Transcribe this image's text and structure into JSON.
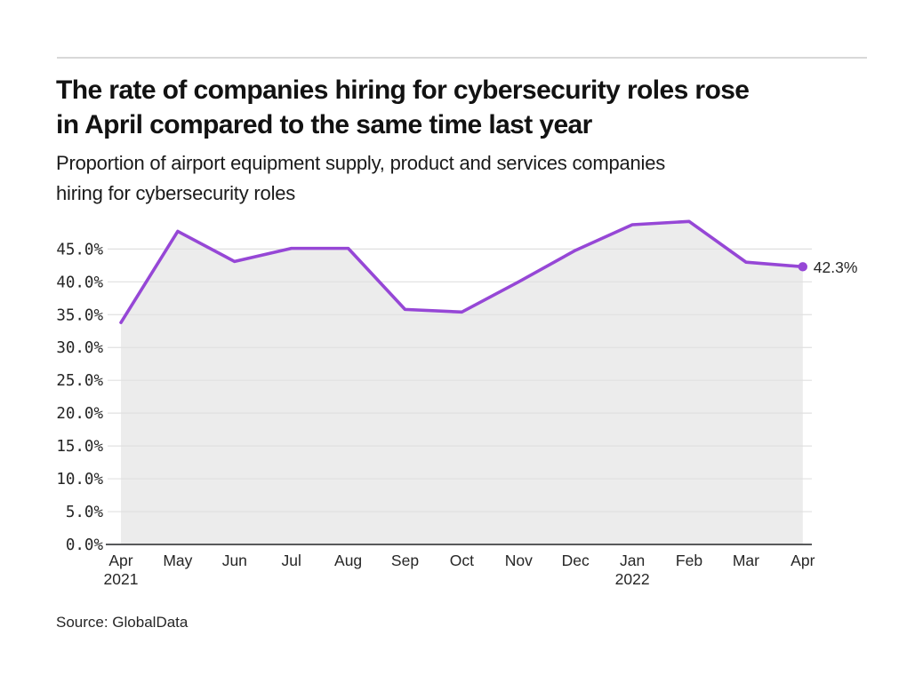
{
  "chart_data": {
    "type": "area",
    "title": "The rate of companies hiring for cybersecurity roles rose in April compared to the same time last year",
    "title_lines": [
      "The rate of companies hiring for cybersecurity roles rose",
      "in April compared to the same time last year"
    ],
    "subtitle": "Proportion of airport equipment supply, product and services companies hiring for cybersecurity roles",
    "subtitle_lines": [
      "Proportion of airport equipment supply, product and services companies",
      "hiring for cybersecurity roles"
    ],
    "categories": [
      "Apr",
      "May",
      "Jun",
      "Jul",
      "Aug",
      "Sep",
      "Oct",
      "Nov",
      "Dec",
      "Jan",
      "Feb",
      "Mar",
      "Apr"
    ],
    "x_year_labels": [
      {
        "index": 0,
        "label": "2021"
      },
      {
        "index": 9,
        "label": "2022"
      }
    ],
    "values": [
      33.8,
      47.7,
      43.1,
      45.1,
      45.1,
      35.8,
      35.4,
      40.0,
      44.8,
      48.7,
      49.2,
      43.0,
      42.3
    ],
    "end_label": "42.3%",
    "xlabel": "",
    "ylabel": "",
    "ylim": [
      0,
      50
    ],
    "yticks": [
      0,
      5,
      10,
      15,
      20,
      25,
      30,
      35,
      40,
      45
    ],
    "ytick_labels": [
      "0.0%",
      "5.0%",
      "10.0%",
      "15.0%",
      "20.0%",
      "25.0%",
      "30.0%",
      "35.0%",
      "40.0%",
      "45.0%"
    ],
    "grid": true,
    "legend": false,
    "colors": {
      "line": "#9647d6",
      "area": "#ececec",
      "grid": "#e0e0e0",
      "axis": "#58595b",
      "tick_text": "#262626",
      "end_label_text": "#262626"
    }
  },
  "footer": {
    "source": "Source: GlobalData"
  }
}
